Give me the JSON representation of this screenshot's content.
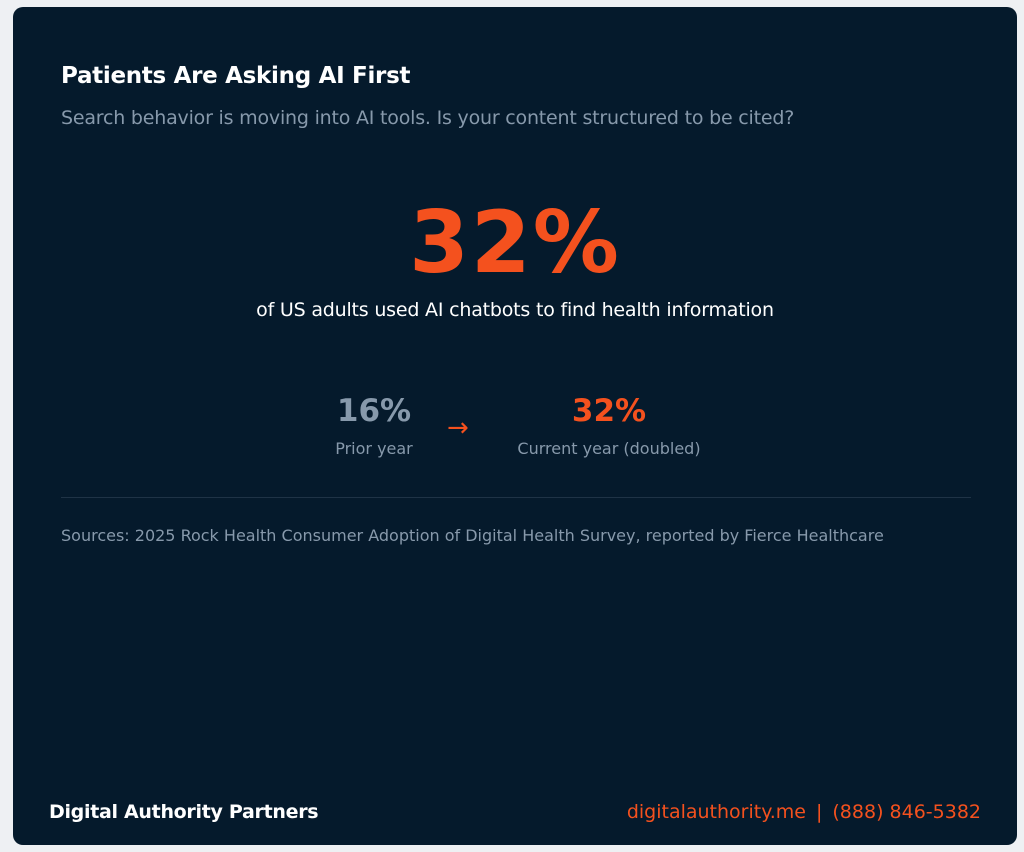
{
  "header": {
    "title": "Patients Are Asking AI First",
    "subtitle": "Search behavior is moving into AI tools. Is your content structured to be cited?"
  },
  "hero": {
    "stat": "32%",
    "description": "of US adults used AI chatbots to find health information"
  },
  "comparison": {
    "prior": {
      "value": "16%",
      "label": "Prior year"
    },
    "arrow": "→",
    "current": {
      "value": "32%",
      "label": "Current year (doubled)"
    }
  },
  "sources": "Sources: 2025 Rock Health Consumer Adoption of Digital Health Survey, reported by Fierce Healthcare",
  "footer": {
    "brand": "Digital Authority Partners",
    "website": "digitalauthority.me",
    "separator": "|",
    "phone": "(888) 846-5382"
  },
  "colors": {
    "background": "#051a2c",
    "accent": "#f4511e",
    "muted": "#8799ab",
    "text": "#ffffff"
  }
}
